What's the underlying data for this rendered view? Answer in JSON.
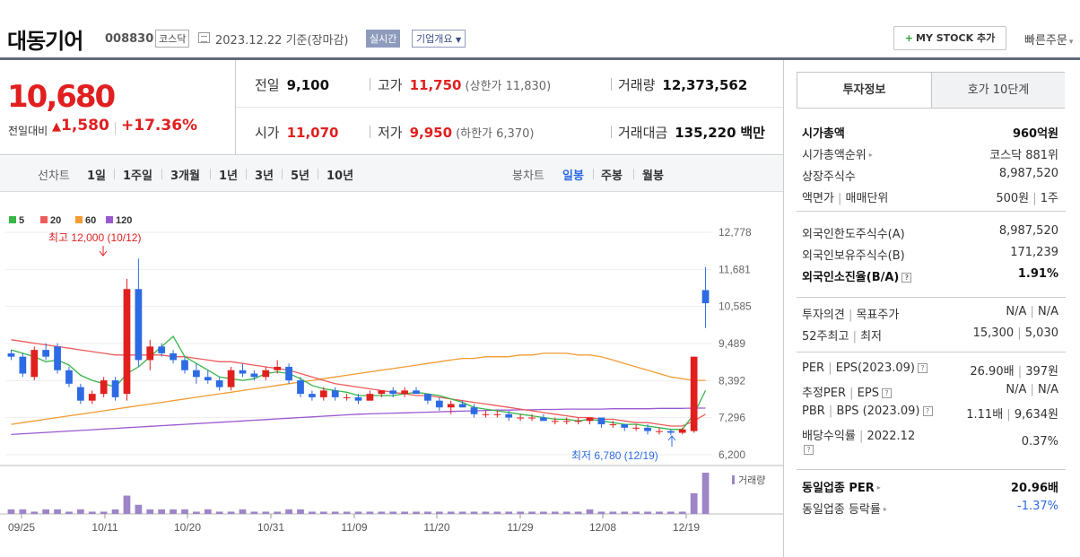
{
  "header": {
    "company": "대동기어",
    "code": "008830",
    "market": "코스닥",
    "date": "2023.12.22  기준(장마감)",
    "realtime": "실시간",
    "overview": "기업개요",
    "mystock": "MY STOCK 추가",
    "quick_order": "빠른주문"
  },
  "price": {
    "current": "10,680",
    "change_label": "전일대비",
    "change": "1,580",
    "change_pct": "+17.36%",
    "prev_label": "전일",
    "prev": "9,100",
    "high_label": "고가",
    "high": "11,750",
    "upper_limit": "(상한가 11,830)",
    "volume_label": "거래량",
    "volume": "12,373,562",
    "open_label": "시가",
    "open": "11,070",
    "low_label": "저가",
    "low": "9,950",
    "lower_limit": "(하한가 6,370)",
    "amount_label": "거래대금",
    "amount": "135,220",
    "amount_unit": "백만"
  },
  "period": {
    "range_title": "선차트",
    "ranges": [
      "1일",
      "1주일",
      "3개월",
      "1년",
      "3년",
      "5년",
      "10년"
    ],
    "candle_title": "봉차트",
    "candles": [
      "일봉",
      "주봉",
      "월봉"
    ],
    "active_candle": "일봉"
  },
  "colors": {
    "up": "#e11f1f",
    "down": "#2d6be4",
    "ma5": "#39b54a",
    "ma20": "#ef5b5b",
    "ma60": "#f39c33",
    "ma120": "#9b59d0",
    "volume": "#9d85c8"
  },
  "chart_data": {
    "type": "candlestick",
    "legend": [
      "5",
      "20",
      "60",
      "120"
    ],
    "yticks": [
      "12,778",
      "11,681",
      "10,585",
      "9,489",
      "8,392",
      "7,296",
      "6,200"
    ],
    "ylim": [
      6200,
      12778
    ],
    "xticks": [
      "09/25",
      "10/11",
      "10/20",
      "10/31",
      "11/09",
      "11/20",
      "11/29",
      "12/08",
      "12/19"
    ],
    "annotations": {
      "high": "최고 12,000 (10/12)",
      "low": "최저 6,780 (12/19)"
    },
    "volume_legend": "거래량",
    "candles": [
      [
        9200,
        9300,
        9000,
        9100
      ],
      [
        9100,
        9200,
        8500,
        8600
      ],
      [
        8500,
        9400,
        8400,
        9300
      ],
      [
        9300,
        9500,
        9000,
        9100
      ],
      [
        9400,
        9500,
        8600,
        8700
      ],
      [
        8700,
        8800,
        8200,
        8300
      ],
      [
        8200,
        8300,
        7700,
        7800
      ],
      [
        7800,
        8100,
        7700,
        8000
      ],
      [
        8000,
        8500,
        7900,
        8400
      ],
      [
        8400,
        8500,
        7800,
        7900
      ],
      [
        8000,
        11400,
        7800,
        11100
      ],
      [
        11100,
        12000,
        8800,
        9000
      ],
      [
        9000,
        9600,
        8700,
        9400
      ],
      [
        9400,
        9500,
        9100,
        9200
      ],
      [
        9200,
        9300,
        8900,
        9000
      ],
      [
        9000,
        9100,
        8600,
        8700
      ],
      [
        8700,
        8900,
        8300,
        8500
      ],
      [
        8500,
        8700,
        8300,
        8400
      ],
      [
        8400,
        8500,
        8100,
        8200
      ],
      [
        8200,
        8800,
        8100,
        8700
      ],
      [
        8700,
        8900,
        8500,
        8600
      ],
      [
        8600,
        8700,
        8400,
        8500
      ],
      [
        8500,
        8800,
        8400,
        8700
      ],
      [
        8700,
        9000,
        8600,
        8800
      ],
      [
        8800,
        8900,
        8300,
        8400
      ],
      [
        8400,
        8500,
        7900,
        8000
      ],
      [
        8000,
        8100,
        7800,
        7900
      ],
      [
        7900,
        8200,
        7800,
        8100
      ],
      [
        8100,
        8200,
        7800,
        7900
      ],
      [
        7900,
        8000,
        7800,
        7900
      ],
      [
        7900,
        8000,
        7700,
        7800
      ],
      [
        7800,
        8100,
        7800,
        8000
      ],
      [
        8000,
        8100,
        7900,
        8100
      ],
      [
        8100,
        8200,
        7900,
        8000
      ],
      [
        8000,
        8200,
        7900,
        8100
      ],
      [
        8100,
        8200,
        8000,
        8000
      ],
      [
        8000,
        8000,
        7700,
        7800
      ],
      [
        7800,
        7900,
        7500,
        7600
      ],
      [
        7600,
        7800,
        7400,
        7700
      ],
      [
        7700,
        7800,
        7600,
        7600
      ],
      [
        7600,
        7700,
        7300,
        7400
      ],
      [
        7400,
        7500,
        7300,
        7400
      ],
      [
        7400,
        7500,
        7300,
        7400
      ],
      [
        7400,
        7500,
        7200,
        7300
      ],
      [
        7300,
        7400,
        7200,
        7300
      ],
      [
        7300,
        7400,
        7200,
        7300
      ],
      [
        7300,
        7400,
        7200,
        7200
      ],
      [
        7200,
        7300,
        7100,
        7200
      ],
      [
        7200,
        7300,
        7100,
        7200
      ],
      [
        7200,
        7300,
        7100,
        7200
      ],
      [
        7200,
        7300,
        7100,
        7300
      ],
      [
        7300,
        7300,
        7000,
        7100
      ],
      [
        7100,
        7200,
        7000,
        7100
      ],
      [
        7100,
        7100,
        6900,
        7000
      ],
      [
        7000,
        7100,
        6900,
        7000
      ],
      [
        7000,
        7100,
        6800,
        6900
      ],
      [
        6900,
        7000,
        6800,
        6900
      ],
      [
        6900,
        6950,
        6780,
        6850
      ],
      [
        6850,
        7000,
        6800,
        6950
      ],
      [
        6900,
        9100,
        6850,
        9100
      ],
      [
        11070,
        11750,
        9950,
        10680
      ]
    ],
    "volumes": [
      2,
      2,
      1,
      2,
      2,
      1,
      2,
      1,
      1,
      2,
      8,
      4,
      2,
      2,
      2,
      2,
      1,
      2,
      1,
      1,
      2,
      1,
      1,
      1,
      2,
      2,
      1,
      1,
      1,
      1,
      1,
      1,
      1,
      1,
      1,
      1,
      1,
      1,
      1,
      1,
      1,
      1,
      1,
      1,
      1,
      1,
      1,
      1,
      1,
      1,
      2,
      1,
      1,
      1,
      1,
      1,
      1,
      1,
      1,
      9,
      18
    ],
    "ma5": [
      9300,
      9200,
      9100,
      8950,
      9000,
      8850,
      8550,
      8400,
      8300,
      8200,
      8600,
      8800,
      9100,
      9400,
      9700,
      9100,
      8900,
      8700,
      8500,
      8450,
      8400,
      8450,
      8600,
      8650,
      8600,
      8450,
      8250,
      8150,
      8100,
      8050,
      7950,
      7950,
      7950,
      7950,
      8000,
      8050,
      8000,
      7950,
      7850,
      7750,
      7600,
      7550,
      7500,
      7450,
      7400,
      7350,
      7300,
      7250,
      7250,
      7200,
      7250,
      7200,
      7150,
      7100,
      7100,
      7050,
      7000,
      6950,
      6950,
      7400,
      8100
    ],
    "ma20": [
      9600,
      9550,
      9500,
      9450,
      9400,
      9350,
      9300,
      9250,
      9200,
      9150,
      9150,
      9150,
      9150,
      9150,
      9100,
      9100,
      9050,
      9000,
      8950,
      8950,
      8900,
      8850,
      8800,
      8750,
      8700,
      8600,
      8500,
      8400,
      8300,
      8250,
      8200,
      8150,
      8100,
      8050,
      8000,
      7950,
      7950,
      7900,
      7850,
      7800,
      7750,
      7700,
      7650,
      7600,
      7550,
      7500,
      7450,
      7400,
      7350,
      7300,
      7300,
      7250,
      7250,
      7200,
      7150,
      7150,
      7100,
      7050,
      7050,
      7200,
      7400
    ],
    "ma60": [
      7100,
      7150,
      7200,
      7250,
      7300,
      7350,
      7400,
      7450,
      7500,
      7550,
      7600,
      7650,
      7700,
      7750,
      7800,
      7850,
      7900,
      7950,
      8000,
      8050,
      8100,
      8150,
      8200,
      8250,
      8300,
      8350,
      8400,
      8450,
      8500,
      8550,
      8600,
      8650,
      8700,
      8750,
      8800,
      8850,
      8900,
      8950,
      9000,
      9050,
      9050,
      9100,
      9100,
      9100,
      9150,
      9150,
      9200,
      9200,
      9200,
      9150,
      9150,
      9100,
      9000,
      8900,
      8800,
      8700,
      8600,
      8500,
      8450,
      8400,
      8400
    ],
    "ma120": [
      6800,
      6820,
      6840,
      6860,
      6880,
      6900,
      6920,
      6940,
      6960,
      6980,
      7000,
      7020,
      7040,
      7060,
      7080,
      7100,
      7120,
      7140,
      7160,
      7180,
      7200,
      7220,
      7240,
      7260,
      7280,
      7300,
      7320,
      7340,
      7360,
      7380,
      7400,
      7410,
      7420,
      7430,
      7440,
      7450,
      7460,
      7470,
      7480,
      7490,
      7500,
      7510,
      7520,
      7520,
      7530,
      7530,
      7540,
      7540,
      7550,
      7550,
      7550,
      7550,
      7560,
      7560,
      7560,
      7560,
      7570,
      7570,
      7570,
      7580,
      7580
    ]
  },
  "panel": {
    "tabs": [
      "투자정보",
      "호가 10단계"
    ],
    "market_cap_label": "시가총액",
    "market_cap": "960억원",
    "cap_rank_label": "시가총액순위",
    "cap_rank": "코스닥 881위",
    "shares_label": "상장주식수",
    "shares": "8,987,520",
    "par_label": "액면가",
    "par_unit_label": "매매단위",
    "par": "500원",
    "unit": "1주",
    "foreign_limit_label": "외국인한도주식수(A)",
    "foreign_limit": "8,987,520",
    "foreign_hold_label": "외국인보유주식수(B)",
    "foreign_hold": "171,239",
    "foreign_ratio_label": "외국인소진율(B/A)",
    "foreign_ratio": "1.91%",
    "opinion_label": "투자의견",
    "target_label": "목표주가",
    "opinion": "N/A",
    "target": "N/A",
    "w52_label": "52주최고",
    "w52_low_label": "최저",
    "w52_high": "15,300",
    "w52_low": "5,030",
    "per_label": "PER",
    "eps_label": "EPS(2023.09)",
    "per": "26.90배",
    "eps": "397원",
    "est_per_label": "추정PER",
    "est_eps_label": "EPS",
    "est_per": "N/A",
    "est_eps": "N/A",
    "pbr_label": "PBR",
    "bps_label": "BPS (2023.09)",
    "pbr": "1.11배",
    "bps": "9,634원",
    "div_label": "배당수익률",
    "div_year": "2022.12",
    "div": "0.37%",
    "ind_per_label": "동일업종 PER",
    "ind_per": "20.96배",
    "ind_rate_label": "동일업종 등락률",
    "ind_rate": "-1.37%"
  }
}
